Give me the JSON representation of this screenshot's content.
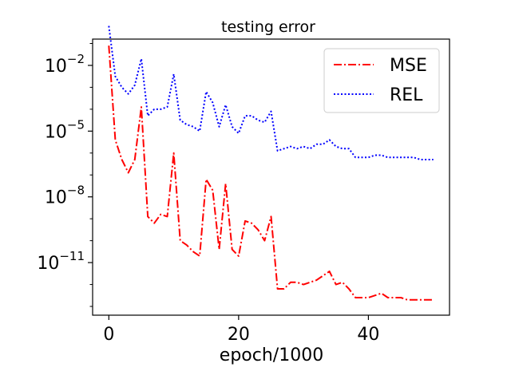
{
  "chart_data": {
    "type": "line",
    "title": "testing error",
    "xlabel": "epoch/1000",
    "ylabel": "",
    "yscale": "log",
    "xlim": [
      -2.5,
      52.5
    ],
    "ylim_log10": [
      -13.4,
      -0.8
    ],
    "x_ticks": [
      0,
      20,
      40
    ],
    "y_ticks": [
      {
        "base": "10",
        "exp": "−2",
        "log10": -2
      },
      {
        "base": "10",
        "exp": "−5",
        "log10": -5
      },
      {
        "base": "10",
        "exp": "−8",
        "log10": -8
      },
      {
        "base": "10",
        "exp": "−11",
        "log10": -11
      }
    ],
    "legend_position": "top-right",
    "grid": false,
    "series": [
      {
        "name": "MSE",
        "color": "#ff0000",
        "style": "dashdot",
        "x": [
          0,
          1,
          2,
          3,
          4,
          5,
          6,
          7,
          8,
          9,
          10,
          11,
          12,
          13,
          14,
          15,
          16,
          17,
          18,
          19,
          20,
          21,
          22,
          23,
          24,
          25,
          26,
          27,
          28,
          29,
          30,
          31,
          32,
          33,
          34,
          35,
          36,
          37,
          38,
          39,
          40,
          41,
          42,
          43,
          44,
          45,
          46,
          47,
          48,
          49,
          50
        ],
        "y_log10": [
          -1.1,
          -5.4,
          -6.3,
          -6.9,
          -6.3,
          -3.9,
          -8.9,
          -9.2,
          -8.8,
          -8.9,
          -6.0,
          -10.0,
          -10.2,
          -10.5,
          -10.7,
          -7.2,
          -7.7,
          -10.4,
          -7.4,
          -10.4,
          -10.7,
          -9.1,
          -9.2,
          -9.5,
          -10.0,
          -8.9,
          -12.2,
          -12.2,
          -11.9,
          -11.9,
          -12.0,
          -11.9,
          -11.8,
          -11.6,
          -11.4,
          -12.0,
          -11.9,
          -12.2,
          -12.6,
          -12.6,
          -12.6,
          -12.5,
          -12.4,
          -12.6,
          -12.6,
          -12.6,
          -12.7,
          -12.7,
          -12.7,
          -12.7,
          -12.7
        ]
      },
      {
        "name": "REL",
        "color": "#0000ff",
        "style": "dotted",
        "x": [
          0,
          1,
          2,
          3,
          4,
          5,
          6,
          7,
          8,
          9,
          10,
          11,
          12,
          13,
          14,
          15,
          16,
          17,
          18,
          19,
          20,
          21,
          22,
          23,
          24,
          25,
          26,
          27,
          28,
          29,
          30,
          31,
          32,
          33,
          34,
          35,
          36,
          37,
          38,
          39,
          40,
          41,
          42,
          43,
          44,
          45,
          46,
          47,
          48,
          49,
          50
        ],
        "y_log10": [
          -0.2,
          -2.5,
          -3.0,
          -3.3,
          -2.9,
          -1.7,
          -4.3,
          -4.0,
          -4.0,
          -3.9,
          -2.4,
          -4.5,
          -4.7,
          -4.8,
          -5.0,
          -3.2,
          -3.7,
          -4.8,
          -3.8,
          -4.8,
          -5.1,
          -4.3,
          -4.3,
          -4.5,
          -4.6,
          -4.1,
          -5.9,
          -5.8,
          -5.7,
          -5.8,
          -5.7,
          -5.8,
          -5.6,
          -5.6,
          -5.4,
          -5.7,
          -5.8,
          -5.8,
          -6.2,
          -6.2,
          -6.2,
          -6.1,
          -6.1,
          -6.2,
          -6.2,
          -6.2,
          -6.2,
          -6.2,
          -6.3,
          -6.3,
          -6.3
        ]
      }
    ]
  }
}
